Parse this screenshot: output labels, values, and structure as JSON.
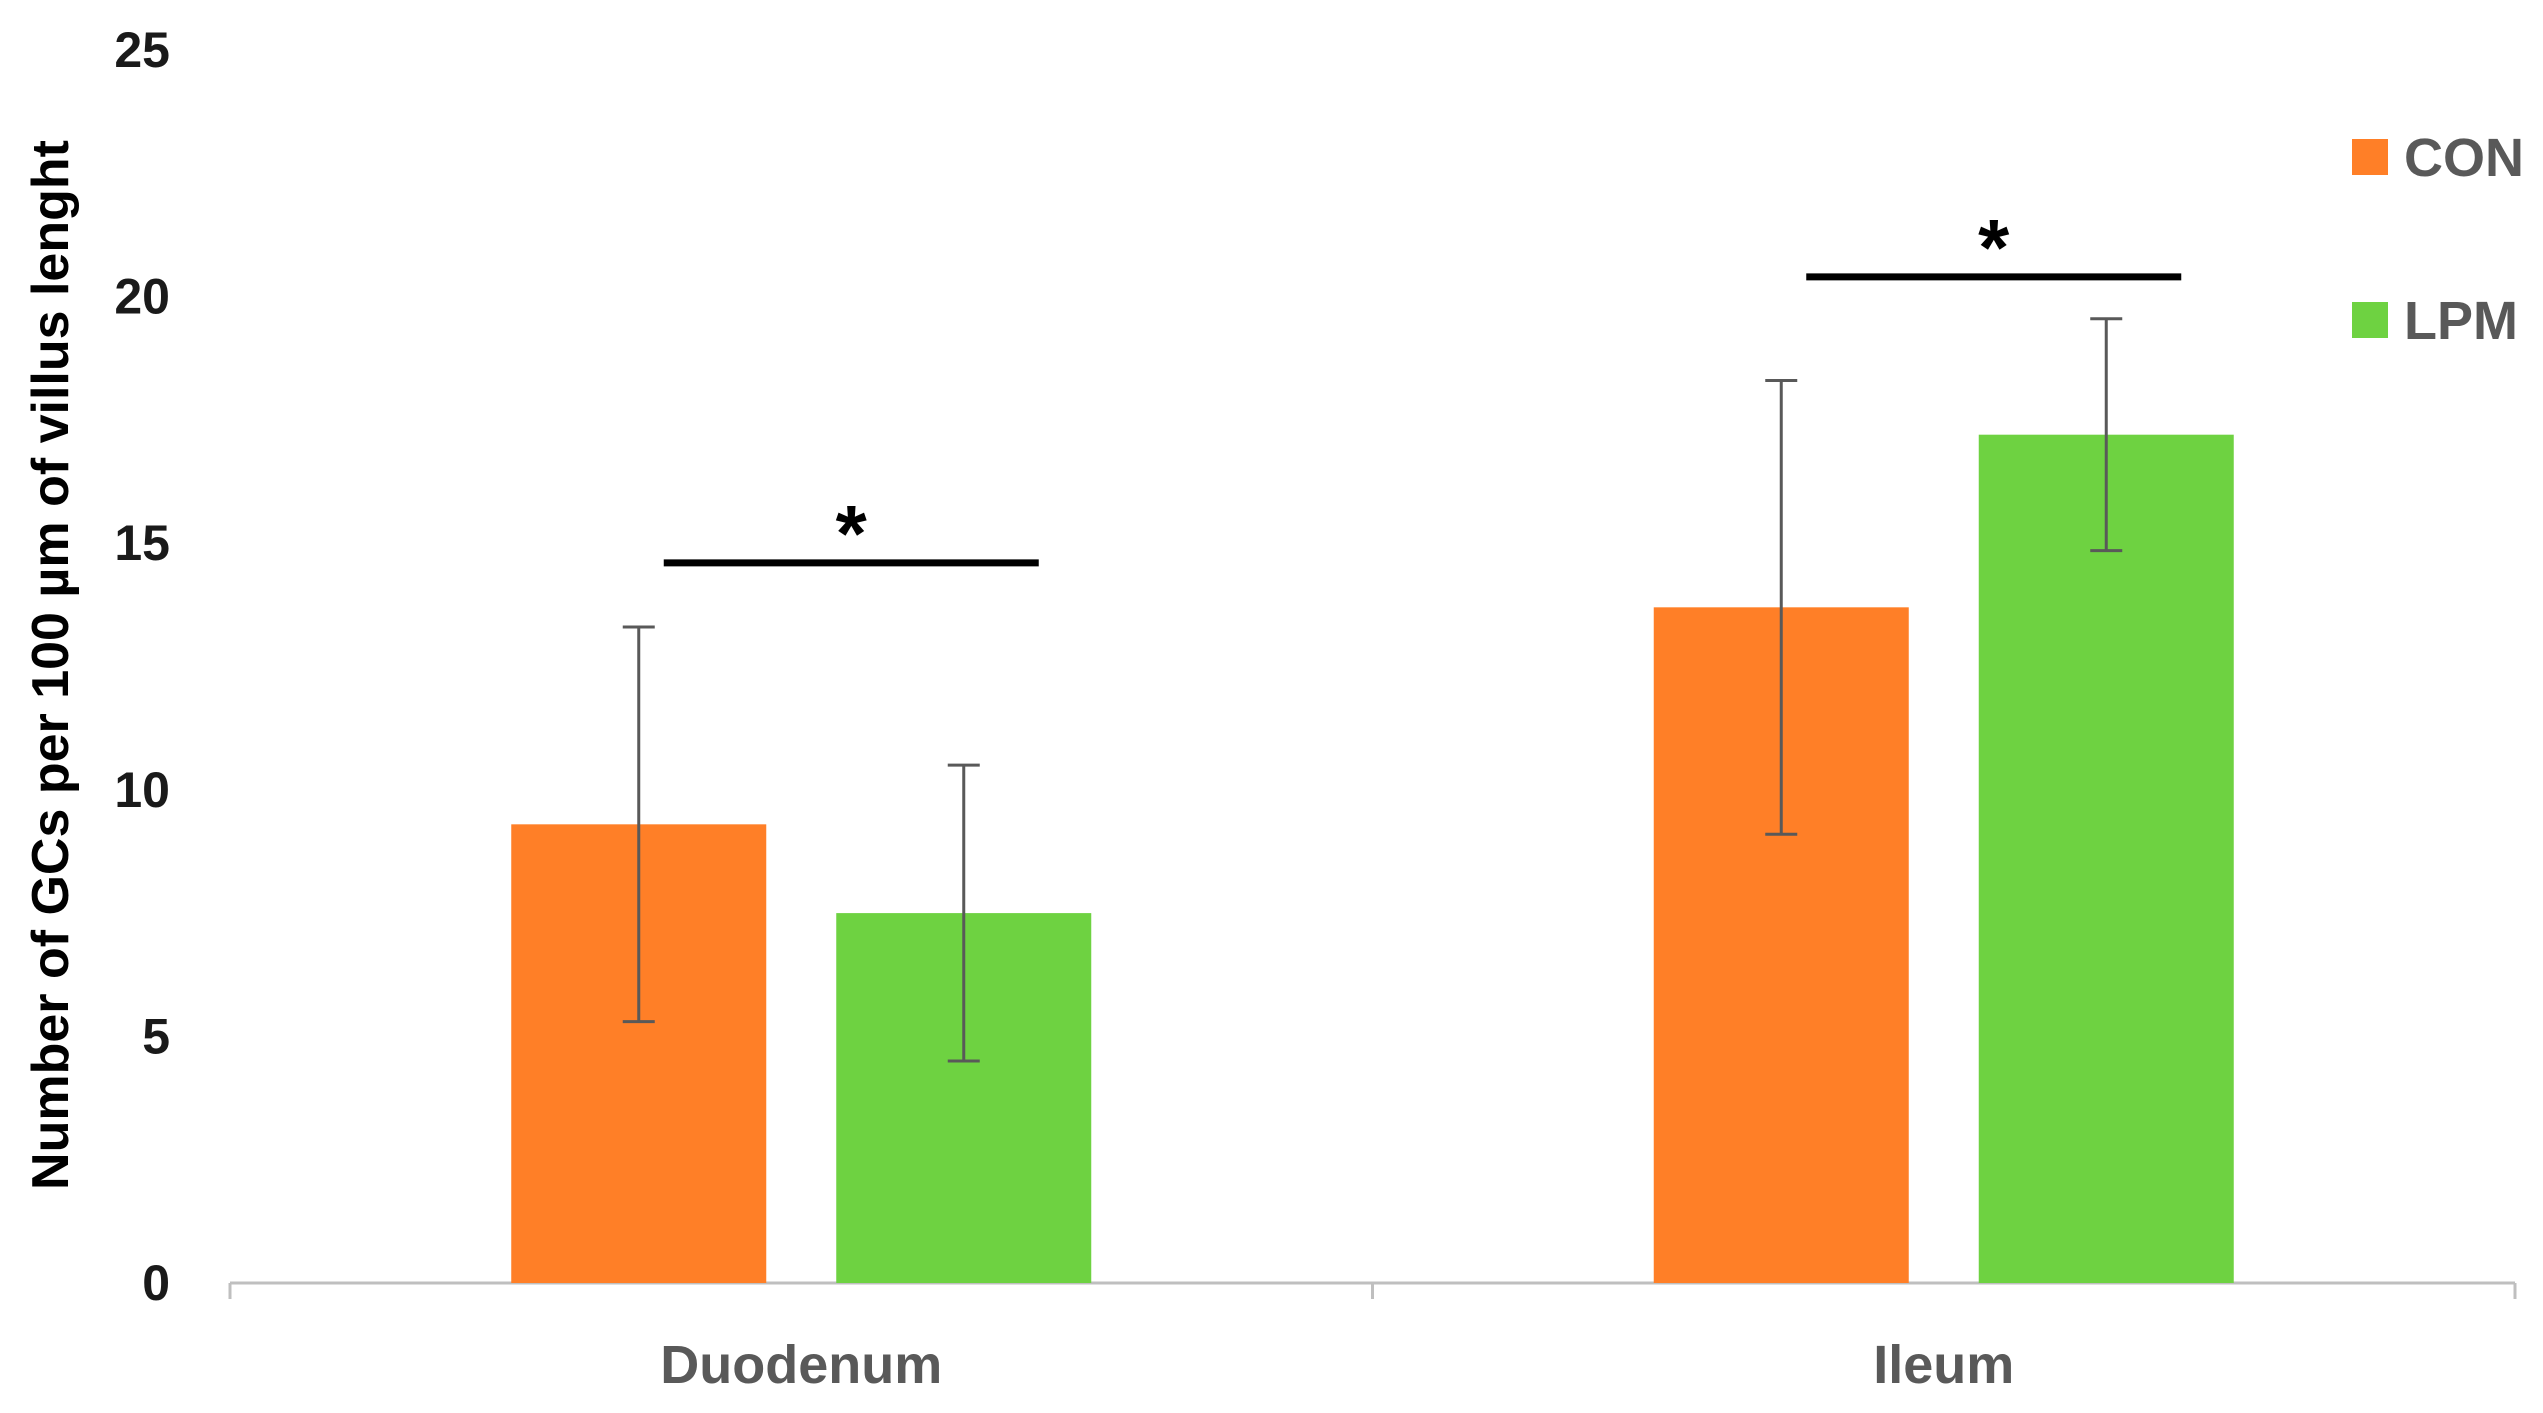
{
  "chart_data": {
    "type": "bar",
    "title": "",
    "xlabel": "",
    "ylabel": "Number of GCs per 100 µm of villus lenght",
    "ylim": [
      0,
      25
    ],
    "yticks": [
      0,
      5,
      10,
      15,
      20,
      25
    ],
    "grid": false,
    "categories": [
      "Duodenum",
      "Ileum"
    ],
    "series": [
      {
        "name": "CON",
        "color": "#FF7F27",
        "values": [
          9.3,
          13.7
        ],
        "errors": [
          4.0,
          4.6
        ]
      },
      {
        "name": "LPM",
        "color": "#6ED241",
        "values": [
          7.5,
          17.2
        ],
        "errors": [
          3.0,
          2.35
        ]
      }
    ],
    "legend": {
      "position": "top-right"
    },
    "annotations": [
      {
        "text": "*",
        "category": "Duodenum",
        "bracket_y": 14.6
      },
      {
        "text": "*",
        "category": "Ileum",
        "bracket_y": 20.4
      }
    ]
  }
}
